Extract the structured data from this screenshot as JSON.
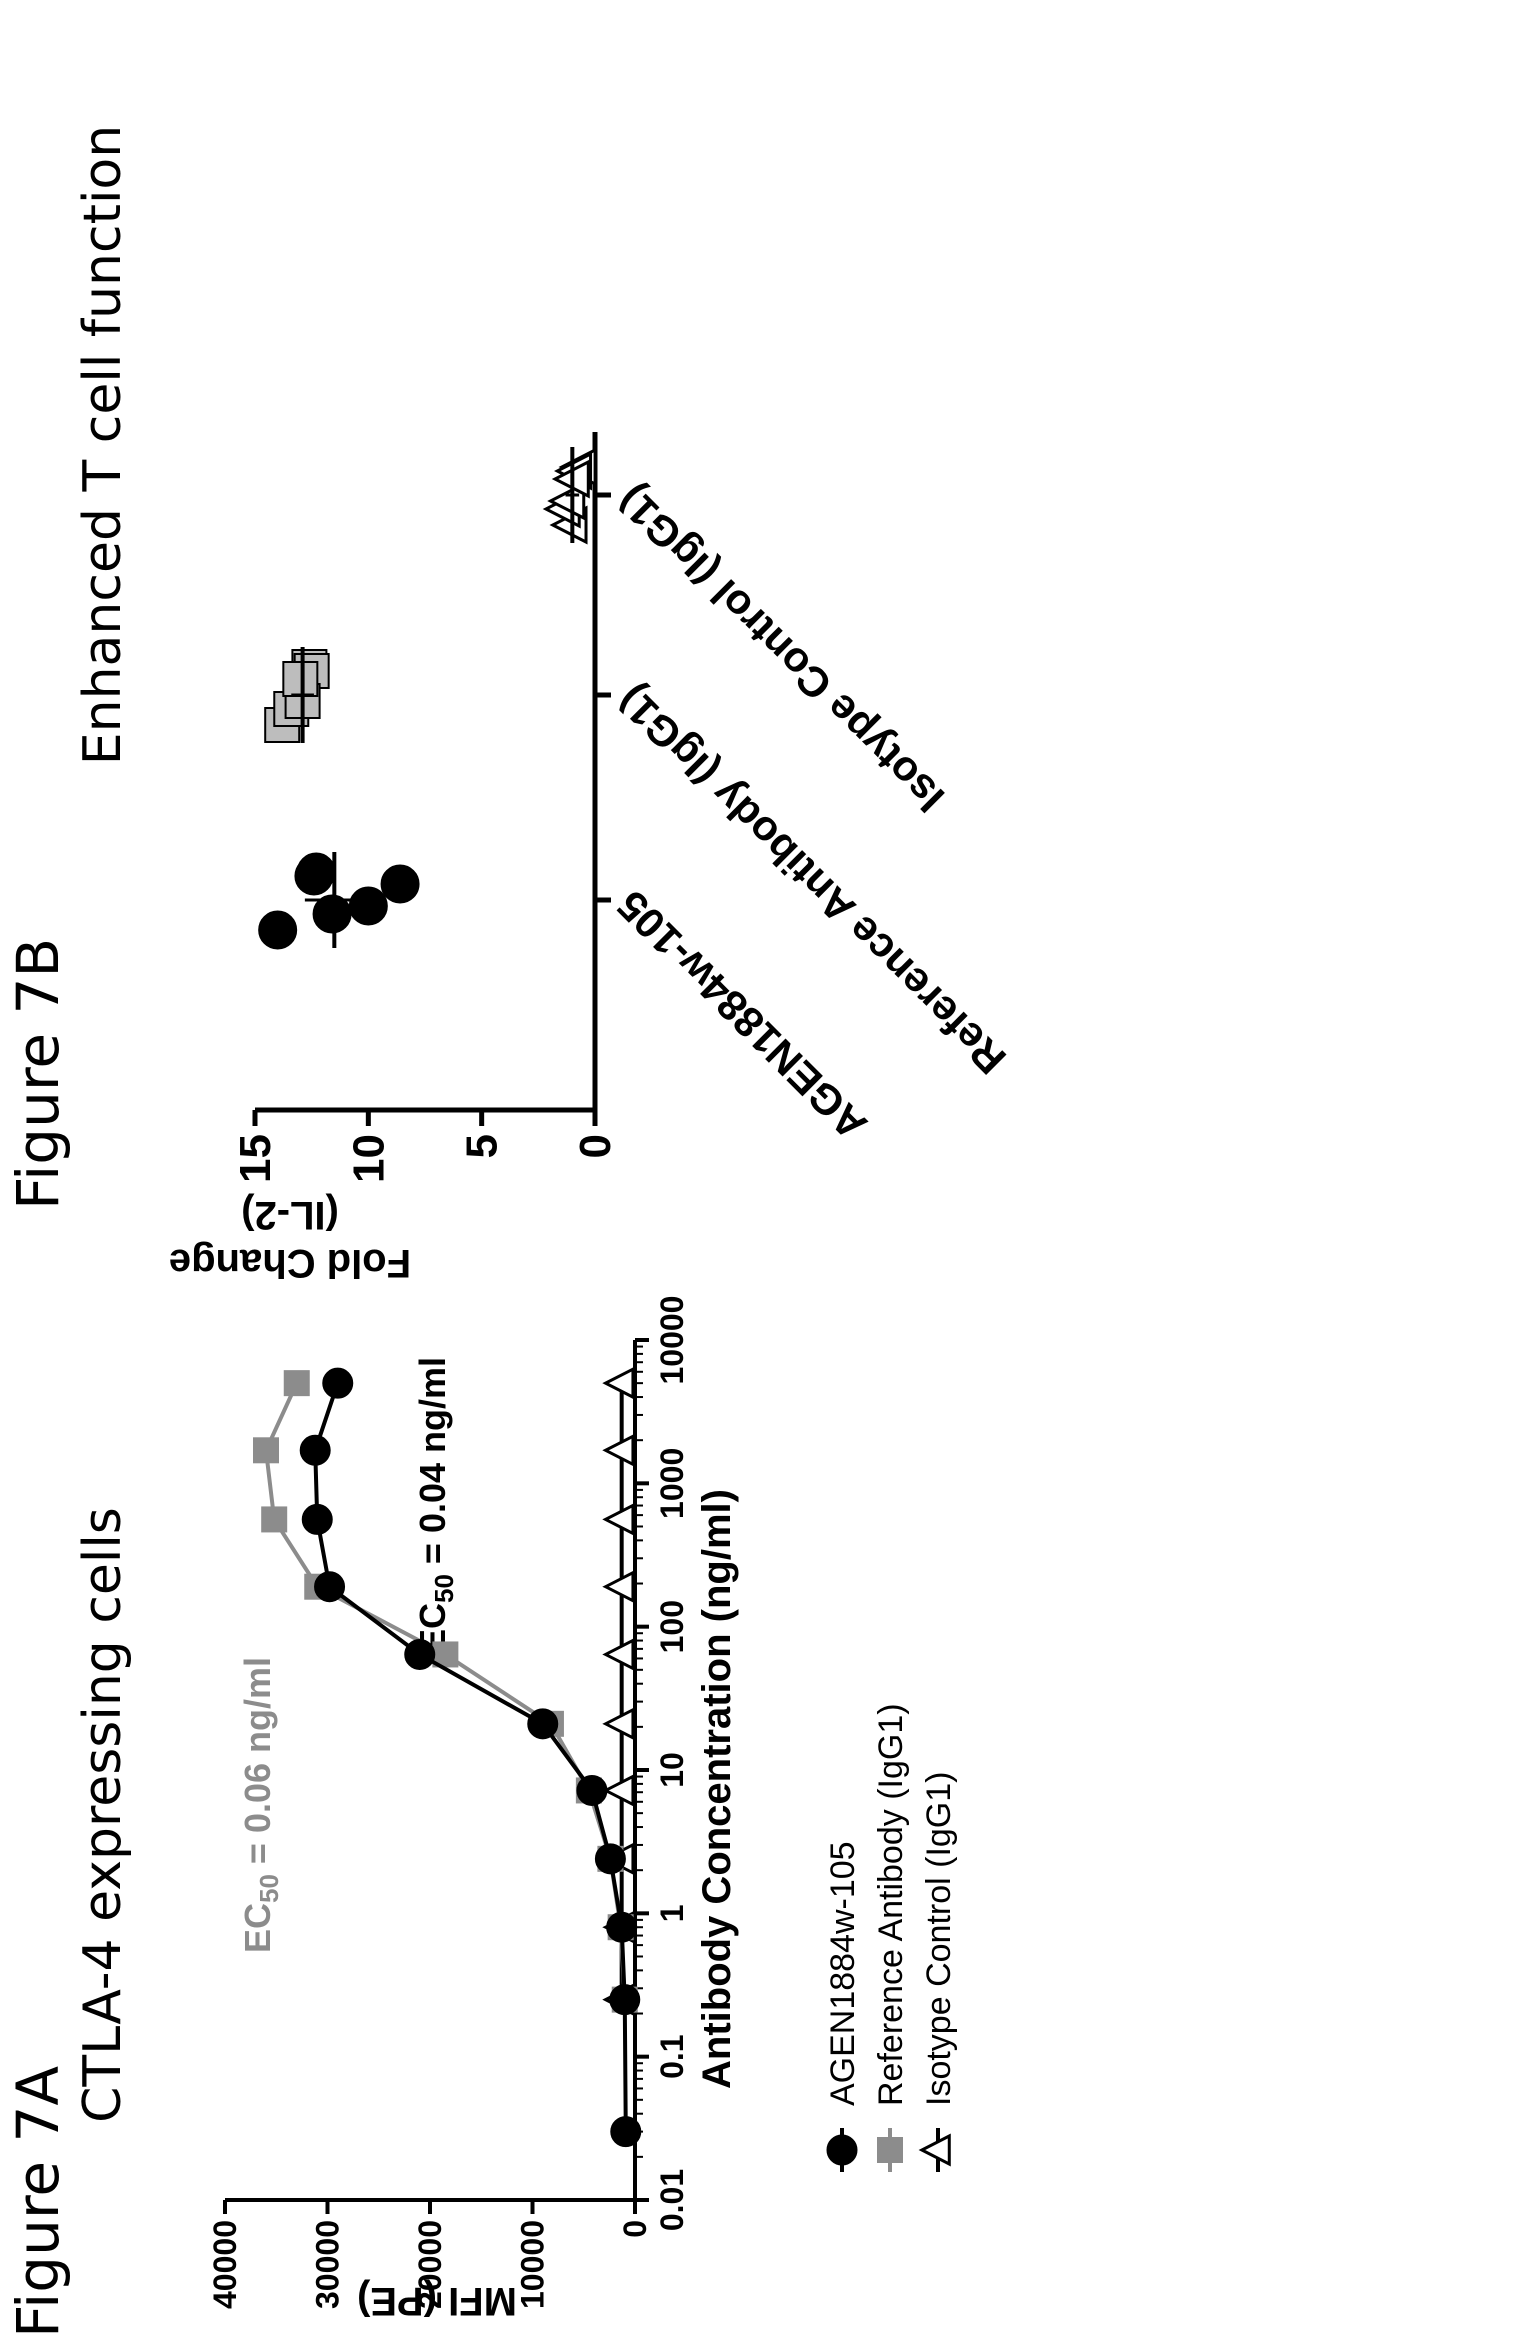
{
  "figure_a_label": "Figure 7A",
  "figure_b_label": "Figure 7B",
  "chart_data": [
    {
      "type": "line",
      "title": "CTLA-4 expressing cells",
      "xlabel": "Antibody Concentration (ng/ml)",
      "ylabel": "MFI (PE)",
      "xscale": "log",
      "xlim": [
        0.01,
        10000
      ],
      "ylim": [
        0,
        40000
      ],
      "xticks": [
        "0.01",
        "0.1",
        "1",
        "10",
        "100",
        "1000",
        "10000"
      ],
      "yticks": [
        "0",
        "10000",
        "20000",
        "30000",
        "40000"
      ],
      "legend_position": "bottom",
      "series": [
        {
          "name": "AGEN1884w-105",
          "color": "#000000",
          "marker": "circle",
          "x": [
            0.03,
            0.25,
            0.8,
            2.4,
            7.2,
            21,
            64,
            190,
            560,
            1700,
            5000
          ],
          "y": [
            900,
            1000,
            1300,
            2400,
            4200,
            9000,
            21000,
            29800,
            31000,
            31200,
            29000
          ]
        },
        {
          "name": "Reference Antibody (IgG1)",
          "color": "#8c8c8c",
          "marker": "square",
          "x": [
            0.25,
            0.8,
            2.4,
            7.2,
            21,
            64,
            190,
            560,
            1700,
            5000
          ],
          "y": [
            1000,
            1400,
            2400,
            4500,
            8200,
            18500,
            31000,
            35200,
            36000,
            33000
          ]
        },
        {
          "name": "Isotype Control (IgG1)",
          "color": "#000000",
          "marker": "triangle",
          "x": [
            0.25,
            0.8,
            2.4,
            7.2,
            21,
            64,
            190,
            560,
            1700,
            5000
          ],
          "y": [
            1300,
            1300,
            1300,
            1300,
            1300,
            1300,
            1300,
            1300,
            1300,
            1300
          ]
        }
      ],
      "annotations": [
        {
          "text": "EC50 = 0.06 ng/ml",
          "base": "EC",
          "sub": "50",
          "rest": " = 0.06 ng/ml",
          "color": "#8c8c8c"
        },
        {
          "text": "EC50 = 0.04 ng/ml",
          "base": "EC",
          "sub": "50",
          "rest": " = 0.04 ng/ml",
          "color": "#000000"
        }
      ]
    },
    {
      "type": "scatter",
      "title": "Enhanced T cell function",
      "ylabel": "Fold Change (IL-2)",
      "ylabel_lines": [
        "Fold Change",
        "(IL-2)"
      ],
      "ylim": [
        0,
        15
      ],
      "yticks": [
        "0",
        "5",
        "10",
        "15"
      ],
      "categories": [
        "AGEN1884w-105",
        "Reference Antibody (IgG1)",
        "Isotype Control (IgG1)"
      ],
      "series": [
        {
          "name": "AGEN1884w-105",
          "marker": "circle",
          "color": "#000000",
          "values": [
            14.0,
            12.3,
            11.6,
            12.4,
            10.0,
            8.6
          ],
          "mean": 11.5
        },
        {
          "name": "Reference Antibody (IgG1)",
          "marker": "square",
          "color": "#bdbdbd",
          "values": [
            13.8,
            12.6,
            13.4,
            12.5,
            12.9,
            13.0
          ],
          "mean": 12.9
        },
        {
          "name": "Isotype Control (IgG1)",
          "marker": "triangle",
          "color": "#ffffff",
          "values": [
            1.0,
            0.6,
            1.3,
            0.8,
            1.1,
            0.9
          ],
          "mean": 1.0
        }
      ]
    }
  ]
}
